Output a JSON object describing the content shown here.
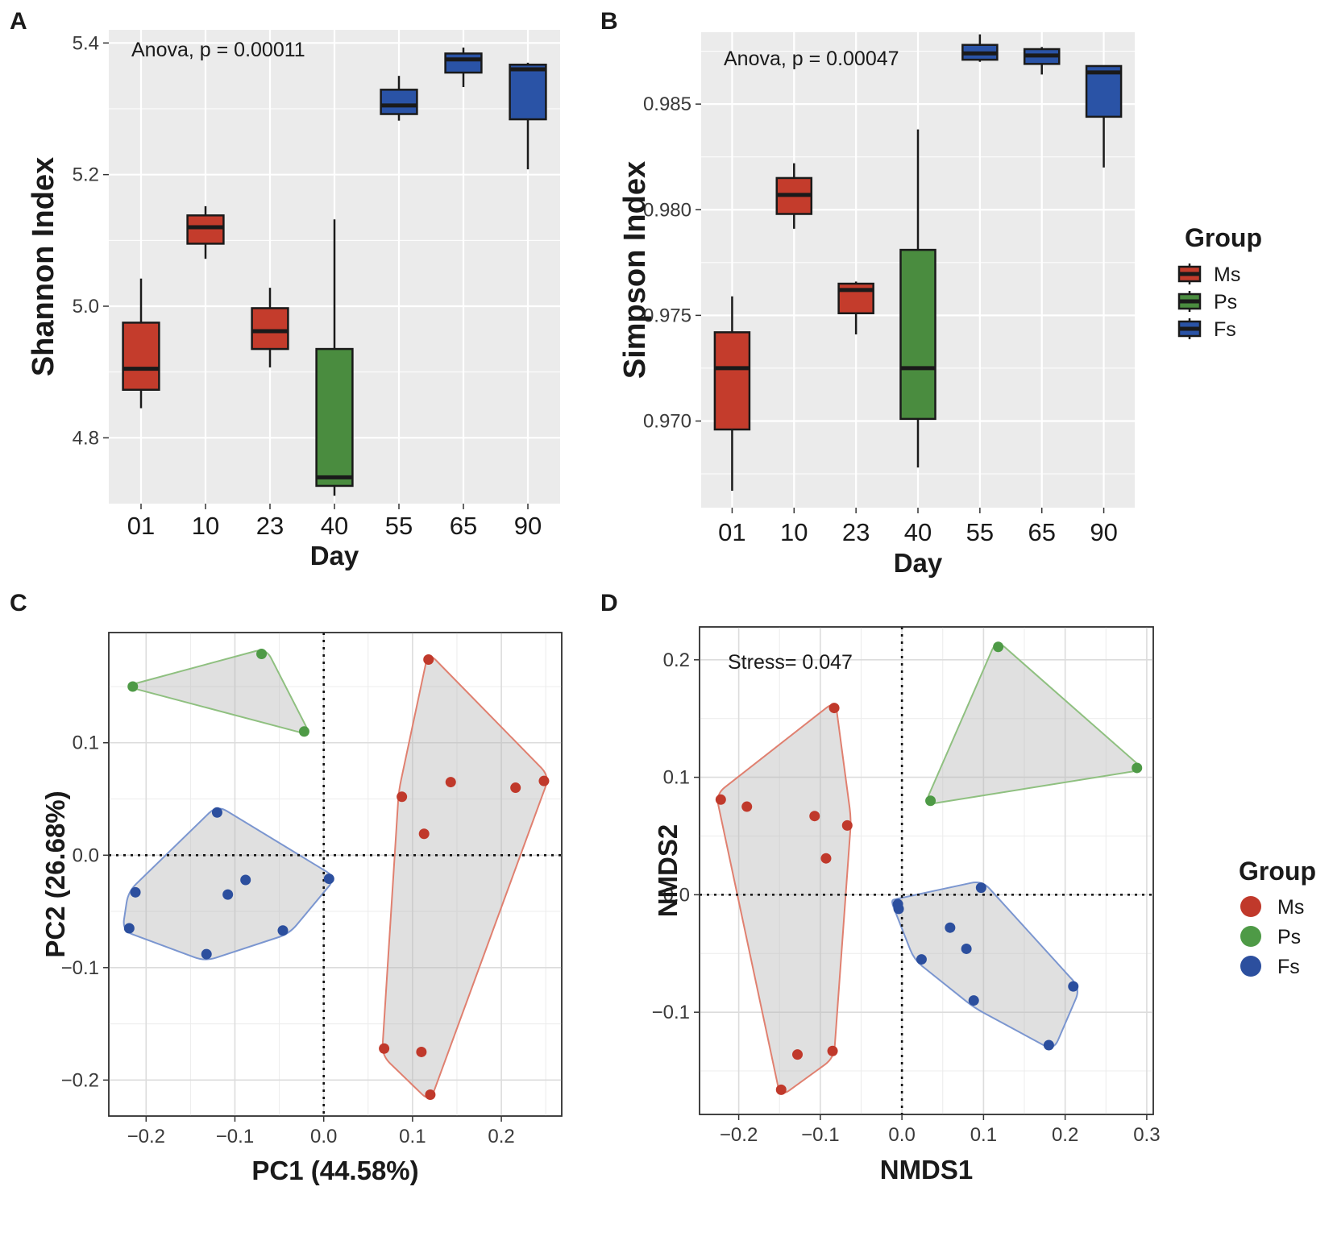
{
  "colors": {
    "Ms_box": "#c43c2c",
    "Ps_box": "#4a8c3f",
    "Fs_box": "#2a53a6",
    "Ms_point": "#c0392b",
    "Ps_point": "#4e9a46",
    "Fs_point": "#2c4f9e",
    "Ms_hull": "#e08070",
    "Ps_hull": "#8fc080",
    "Fs_hull": "#7b96d0"
  },
  "chart_data": [
    {
      "panel": "A",
      "type": "box",
      "annotation": "Anova, p = 0.00011",
      "xlabel": "Day",
      "ylabel": "Shannon Index",
      "categories": [
        "01",
        "10",
        "23",
        "40",
        "55",
        "65",
        "90"
      ],
      "groups": [
        "Ms",
        "Ms",
        "Ms",
        "Ps",
        "Fs",
        "Fs",
        "Fs"
      ],
      "yticks": [
        4.8,
        5.0,
        5.2,
        5.4
      ],
      "ytick_labels": [
        "4.8",
        "5.0",
        "5.2",
        "5.4"
      ],
      "ylim": [
        4.7,
        5.42
      ],
      "boxes": [
        {
          "min": 4.845,
          "q1": 4.873,
          "median": 4.905,
          "q3": 4.975,
          "max": 5.042
        },
        {
          "min": 5.072,
          "q1": 5.095,
          "median": 5.12,
          "q3": 5.138,
          "max": 5.152
        },
        {
          "min": 4.907,
          "q1": 4.935,
          "median": 4.962,
          "q3": 4.997,
          "max": 5.028
        },
        {
          "min": 4.712,
          "q1": 4.727,
          "median": 4.74,
          "q3": 4.935,
          "max": 5.132
        },
        {
          "min": 5.282,
          "q1": 5.292,
          "median": 5.305,
          "q3": 5.329,
          "max": 5.35
        },
        {
          "min": 5.333,
          "q1": 5.355,
          "median": 5.375,
          "q3": 5.384,
          "max": 5.393
        },
        {
          "min": 5.208,
          "q1": 5.284,
          "median": 5.36,
          "q3": 5.367,
          "max": 5.37
        }
      ]
    },
    {
      "panel": "B",
      "type": "box",
      "annotation": "Anova, p = 0.00047",
      "xlabel": "Day",
      "ylabel": "Simpson Index",
      "categories": [
        "01",
        "10",
        "23",
        "40",
        "55",
        "65",
        "90"
      ],
      "groups": [
        "Ms",
        "Ms",
        "Ms",
        "Ps",
        "Fs",
        "Fs",
        "Fs"
      ],
      "yticks": [
        0.97,
        0.975,
        0.98,
        0.985
      ],
      "ytick_labels": [
        "0.970",
        "0.975",
        "0.980",
        "0.985"
      ],
      "ylim": [
        0.9659,
        0.9884
      ],
      "boxes": [
        {
          "min": 0.9667,
          "q1": 0.9696,
          "median": 0.9725,
          "q3": 0.9742,
          "max": 0.9759
        },
        {
          "min": 0.9791,
          "q1": 0.9798,
          "median": 0.9807,
          "q3": 0.9815,
          "max": 0.9822
        },
        {
          "min": 0.9741,
          "q1": 0.9751,
          "median": 0.9762,
          "q3": 0.9765,
          "max": 0.9766
        },
        {
          "min": 0.9678,
          "q1": 0.9701,
          "median": 0.9725,
          "q3": 0.9781,
          "max": 0.9838
        },
        {
          "min": 0.987,
          "q1": 0.9871,
          "median": 0.9874,
          "q3": 0.9878,
          "max": 0.9883
        },
        {
          "min": 0.9864,
          "q1": 0.9869,
          "median": 0.9873,
          "q3": 0.9876,
          "max": 0.9877
        },
        {
          "min": 0.982,
          "q1": 0.9844,
          "median": 0.9865,
          "q3": 0.9868,
          "max": 0.9868
        }
      ]
    },
    {
      "panel": "C",
      "type": "scatter",
      "xlabel": "PC1 (44.58%)",
      "ylabel": "PC2 (26.68%)",
      "xticks": [
        -0.2,
        -0.1,
        0.0,
        0.1,
        0.2
      ],
      "xtick_labels": [
        "−0.2",
        "−0.1",
        "0.0",
        "0.1",
        "0.2"
      ],
      "yticks": [
        -0.2,
        -0.1,
        0.0,
        0.1
      ],
      "ytick_labels": [
        "−0.2",
        "−0.1",
        "0.0",
        "0.1"
      ],
      "xlim": [
        -0.242,
        0.268
      ],
      "ylim": [
        -0.232,
        0.198
      ],
      "series": [
        {
          "name": "Ms",
          "x": [
            0.118,
            0.088,
            0.143,
            0.216,
            0.248,
            0.113,
            0.068,
            0.11,
            0.12
          ],
          "y": [
            0.174,
            0.052,
            0.065,
            0.06,
            0.066,
            0.019,
            -0.172,
            -0.175,
            -0.213
          ]
        },
        {
          "name": "Ps",
          "x": [
            -0.215,
            -0.07,
            -0.022
          ],
          "y": [
            0.15,
            0.179,
            0.11
          ]
        },
        {
          "name": "Fs",
          "x": [
            -0.12,
            -0.212,
            -0.219,
            -0.132,
            -0.108,
            -0.088,
            -0.046,
            0.006
          ],
          "y": [
            0.038,
            -0.033,
            -0.065,
            -0.088,
            -0.035,
            -0.022,
            -0.067,
            -0.021
          ]
        }
      ]
    },
    {
      "panel": "D",
      "type": "scatter",
      "annotation": "Stress= 0.047",
      "xlabel": "NMDS1",
      "ylabel": "NMDS2",
      "xticks": [
        -0.2,
        -0.1,
        0.0,
        0.1,
        0.2,
        0.3
      ],
      "xtick_labels": [
        "−0.2",
        "−0.1",
        "0.0",
        "0.1",
        "0.2",
        "0.3"
      ],
      "yticks": [
        -0.1,
        0.0,
        0.1,
        0.2
      ],
      "ytick_labels": [
        "−0.1",
        "0.0",
        "0.1",
        "0.2"
      ],
      "xlim": [
        -0.248,
        0.308
      ],
      "ylim": [
        -0.187,
        0.228
      ],
      "series": [
        {
          "name": "Ms",
          "x": [
            -0.083,
            -0.222,
            -0.19,
            -0.107,
            -0.067,
            -0.093,
            -0.128,
            -0.085,
            -0.148
          ],
          "y": [
            0.159,
            0.081,
            0.075,
            0.067,
            0.059,
            0.031,
            -0.136,
            -0.133,
            -0.166
          ]
        },
        {
          "name": "Ps",
          "x": [
            0.118,
            0.288,
            0.035
          ],
          "y": [
            0.211,
            0.108,
            0.08
          ]
        },
        {
          "name": "Fs",
          "x": [
            0.097,
            -0.005,
            -0.004,
            0.059,
            0.079,
            0.024,
            0.088,
            0.21,
            0.18
          ],
          "y": [
            0.006,
            -0.008,
            -0.012,
            -0.028,
            -0.046,
            -0.055,
            -0.09,
            -0.078,
            -0.128
          ]
        }
      ]
    }
  ],
  "panels": {
    "A": {
      "label": "A"
    },
    "B": {
      "label": "B"
    },
    "C": {
      "label": "C"
    },
    "D": {
      "label": "D"
    }
  },
  "legend_box": {
    "title": "Group",
    "items": [
      {
        "name": "Ms",
        "color_key": "Ms_box"
      },
      {
        "name": "Ps",
        "color_key": "Ps_box"
      },
      {
        "name": "Fs",
        "color_key": "Fs_box"
      }
    ]
  },
  "legend_point": {
    "title": "Group",
    "items": [
      {
        "name": "Ms",
        "color_key": "Ms_point"
      },
      {
        "name": "Ps",
        "color_key": "Ps_point"
      },
      {
        "name": "Fs",
        "color_key": "Fs_point"
      }
    ]
  }
}
